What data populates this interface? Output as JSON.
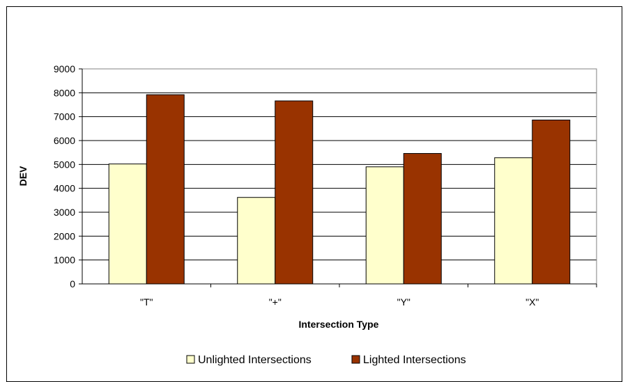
{
  "chart_data": {
    "type": "bar",
    "categories": [
      "\"T\"",
      "\"+\"",
      "\"Y\"",
      "\"X\""
    ],
    "series": [
      {
        "name": "Unlighted Intersections",
        "values": [
          5020,
          3620,
          4900,
          5280
        ],
        "color": "#FFFFCC"
      },
      {
        "name": "Lighted Intersections",
        "values": [
          7920,
          7660,
          5460,
          6860
        ],
        "color": "#993300"
      }
    ],
    "xlabel": "Intersection Type",
    "ylabel": "DEV",
    "ylim": [
      0,
      9000
    ],
    "yticks": [
      0,
      1000,
      2000,
      3000,
      4000,
      5000,
      6000,
      7000,
      8000,
      9000
    ],
    "grid": true,
    "legend": "bottom"
  }
}
